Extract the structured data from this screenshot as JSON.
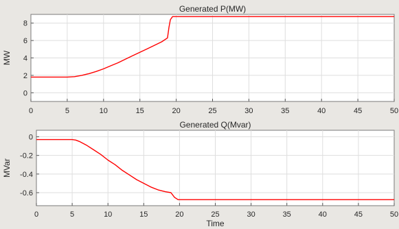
{
  "chart_data": [
    {
      "type": "line",
      "title": "Generated P(MW)",
      "xlabel": "",
      "ylabel": "MW",
      "xlim": [
        0,
        50
      ],
      "ylim": [
        -1,
        9
      ],
      "xticks": [
        0,
        5,
        10,
        15,
        20,
        25,
        30,
        35,
        40,
        45,
        50
      ],
      "yticks": [
        0,
        2,
        4,
        6,
        8
      ],
      "grid": true,
      "series": [
        {
          "color": "#ff0000",
          "x": [
            0,
            5,
            6,
            7,
            8,
            9,
            10,
            11,
            12,
            13,
            14,
            15,
            16,
            17,
            18,
            18.8,
            19.0,
            19.2,
            19.5,
            20,
            25,
            30,
            35,
            40,
            45,
            50
          ],
          "y": [
            1.8,
            1.8,
            1.85,
            2.0,
            2.2,
            2.45,
            2.75,
            3.1,
            3.45,
            3.85,
            4.25,
            4.65,
            5.05,
            5.45,
            5.85,
            6.3,
            7.5,
            8.4,
            8.75,
            8.75,
            8.75,
            8.75,
            8.75,
            8.75,
            8.75,
            8.75
          ]
        }
      ]
    },
    {
      "type": "line",
      "title": "Generated Q(Mvar)",
      "xlabel": "Time",
      "ylabel": "MVar",
      "xlim": [
        0,
        50
      ],
      "ylim": [
        -0.74,
        0.07
      ],
      "xticks": [
        0,
        5,
        10,
        15,
        20,
        25,
        30,
        35,
        40,
        45,
        50
      ],
      "yticks": [
        0,
        -0.2,
        -0.4,
        -0.6
      ],
      "grid": true,
      "series": [
        {
          "color": "#ff0000",
          "x": [
            0,
            5,
            5.5,
            6,
            7,
            8,
            9,
            10,
            11,
            12,
            13,
            14,
            15,
            16,
            17,
            18,
            18.8,
            19.3,
            19.8,
            20,
            25,
            30,
            35,
            40,
            45,
            50
          ],
          "y": [
            -0.03,
            -0.03,
            -0.035,
            -0.05,
            -0.09,
            -0.14,
            -0.19,
            -0.25,
            -0.3,
            -0.36,
            -0.41,
            -0.46,
            -0.5,
            -0.54,
            -0.57,
            -0.59,
            -0.6,
            -0.65,
            -0.675,
            -0.675,
            -0.675,
            -0.675,
            -0.675,
            -0.675,
            -0.675,
            -0.675
          ]
        }
      ]
    }
  ]
}
